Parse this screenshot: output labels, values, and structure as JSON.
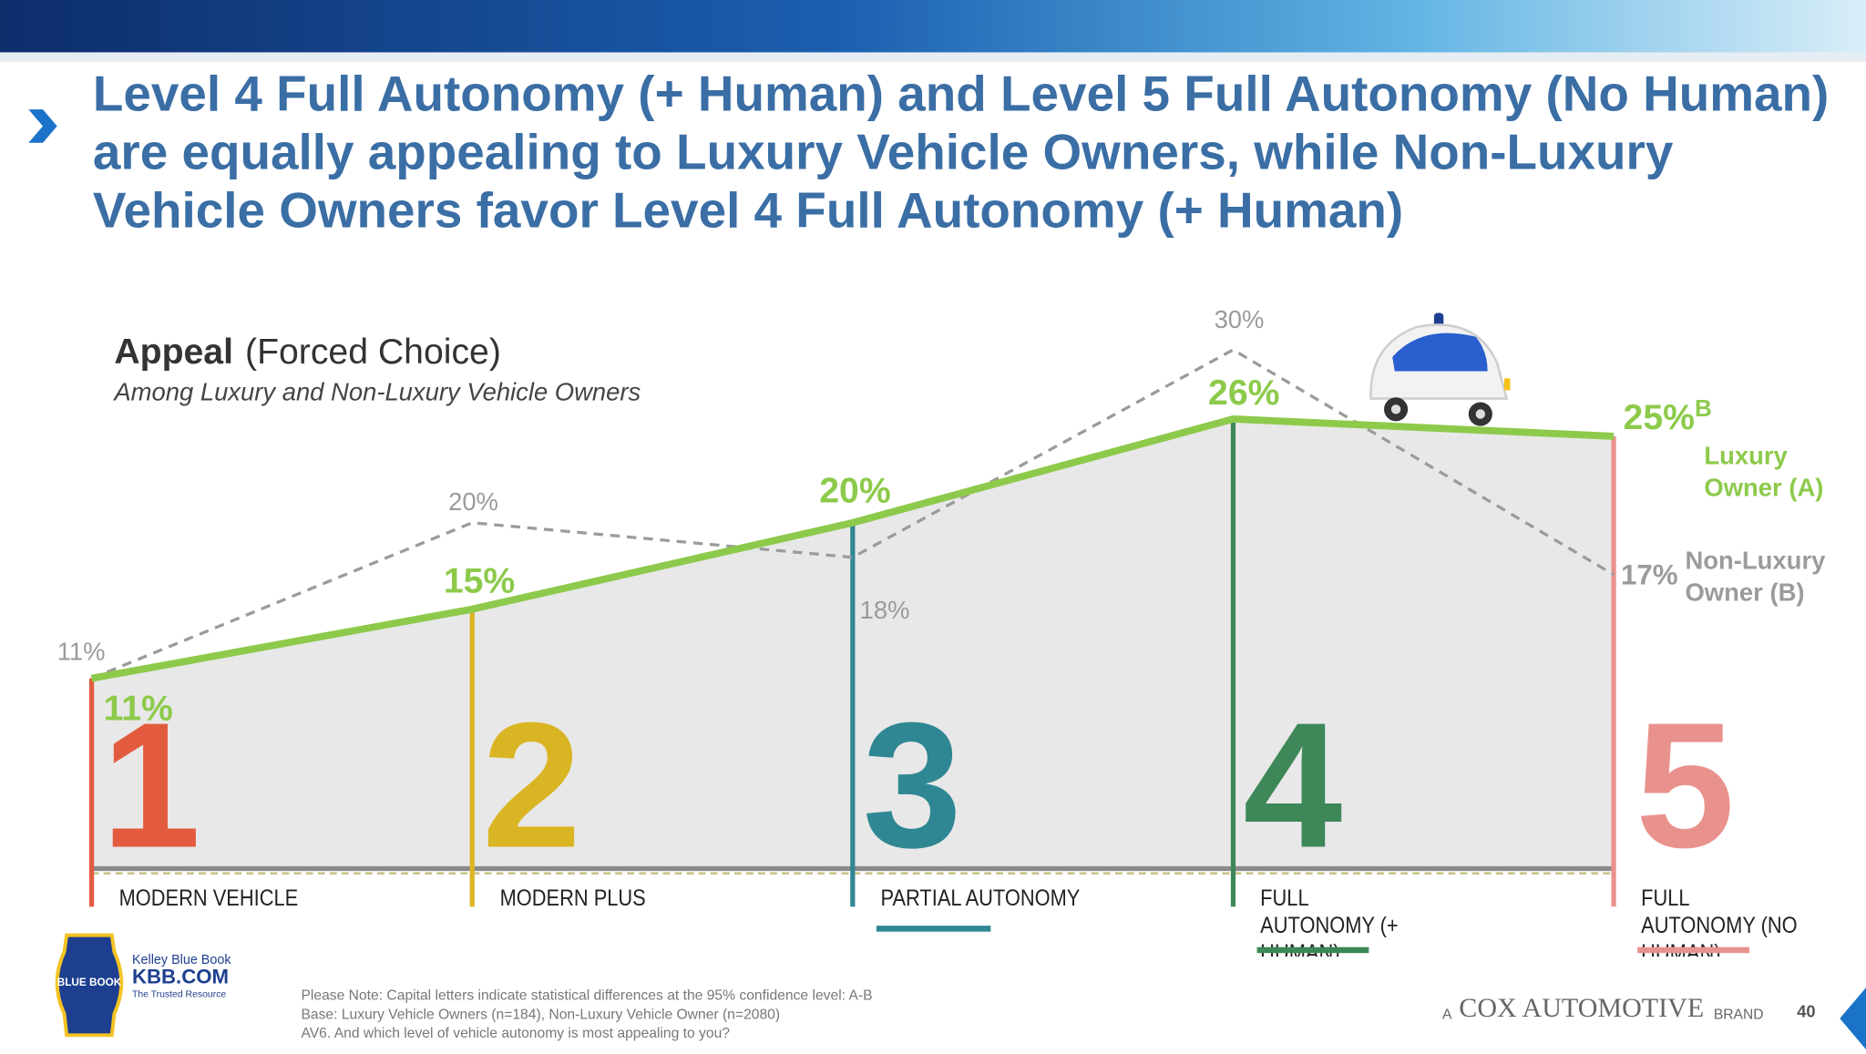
{
  "chart_data": {
    "type": "line",
    "title": "Level 4 Full Autonomy (+ Human) and Level 5 Full Autonomy (No Human) are equally appealing to Luxury Vehicle Owners, while Non-Luxury Vehicle Owners favor Level 4 Full Autonomy (+ Human)",
    "subtitle_bold": "Appeal",
    "subtitle": "(Forced Choice)",
    "subtitle_note": "Among Luxury and Non-Luxury Vehicle Owners",
    "levels": [
      "1",
      "2",
      "3",
      "4",
      "5"
    ],
    "categories": [
      "MODERN VEHICLE",
      "MODERN PLUS",
      "PARTIAL AUTONOMY",
      "FULL AUTONOMY (+ HUMAN)",
      "FULL AUTONOMY (NO HUMAN)"
    ],
    "level_colors": [
      "#e35b3f",
      "#dab523",
      "#2f8793",
      "#3d8758",
      "#e9928d"
    ],
    "ylim": [
      0,
      30
    ],
    "series": [
      {
        "name": "Luxury Owner (A)",
        "color": "#8dca4b",
        "values": [
          11,
          15,
          20,
          26,
          25
        ],
        "value_labels": [
          "11%",
          "15%",
          "20%",
          "26%",
          "25%"
        ]
      },
      {
        "name": "Non-Luxury Owner (B)",
        "color": "#9b9b9b",
        "values": [
          11,
          20,
          18,
          30,
          17
        ],
        "value_labels": [
          "11%",
          "20%",
          "18%",
          "30%",
          "17%"
        ]
      }
    ],
    "annotation": "B",
    "notes": [
      "Please Note: Capital letters indicate statistical differences at the 95% confidence level: A-B",
      "Base: Luxury Vehicle Owners (n=184), Non-Luxury Vehicle Owner (n=2080)",
      "AV6. And which level of vehicle autonomy is most appealing to you?"
    ],
    "logo": {
      "name": "Kelley Blue Book",
      "site": "KBB.COM",
      "tagline": "The Trusted Resource",
      "badge": "BLUE BOOK"
    },
    "brand": {
      "prefix": "A",
      "name": "COX AUTOMOTIVE",
      "suffix": "BRAND"
    },
    "page_number": "40"
  }
}
